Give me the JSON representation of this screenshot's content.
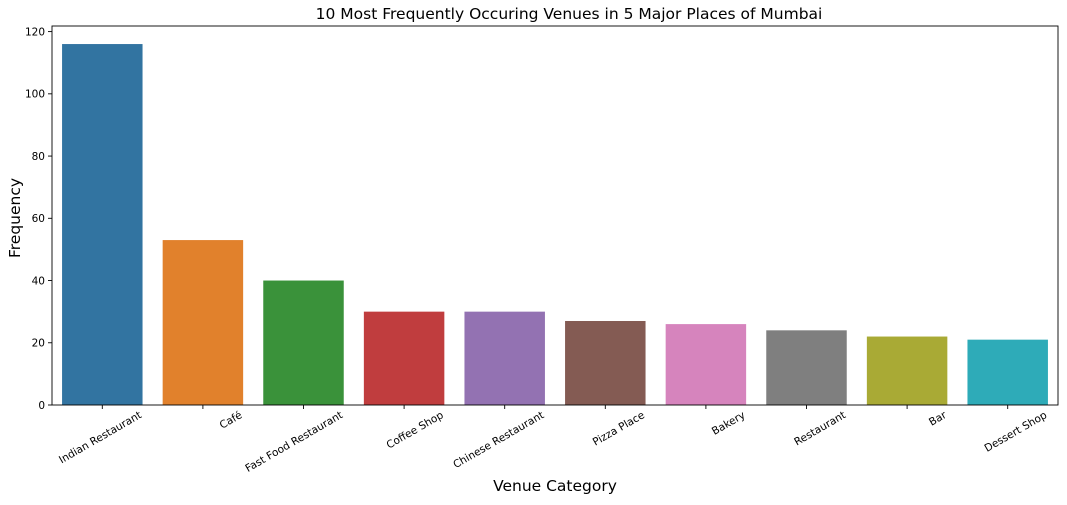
{
  "chart_data": {
    "type": "bar",
    "title": "10 Most Frequently Occuring Venues in 5 Major Places of Mumbai",
    "xlabel": "Venue Category",
    "ylabel": "Frequency",
    "categories": [
      "Indian Restaurant",
      "Café",
      "Fast Food Restaurant",
      "Coffee Shop",
      "Chinese Restaurant",
      "Pizza Place",
      "Bakery",
      "Restaurant",
      "Bar",
      "Dessert Shop"
    ],
    "values": [
      116,
      53,
      40,
      30,
      30,
      27,
      26,
      24,
      22,
      21
    ],
    "colors": [
      "#3274a1",
      "#e1812c",
      "#3a923a",
      "#c03d3e",
      "#9372b2",
      "#845b53",
      "#d684bd",
      "#7f7f7f",
      "#a9aa35",
      "#2eabb8"
    ],
    "ylim": [
      0,
      121.8
    ],
    "yticks": [
      0,
      20,
      40,
      60,
      80,
      100,
      120
    ],
    "ytick_labels": [
      "0",
      "20",
      "40",
      "60",
      "80",
      "100",
      "120"
    ],
    "grid": false,
    "legend": "none",
    "x_tick_rotation_deg": 30
  }
}
